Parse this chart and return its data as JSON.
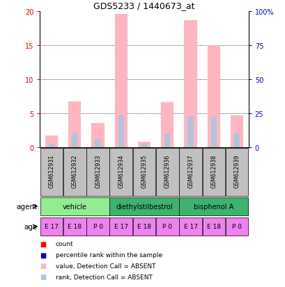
{
  "title": "GDS5233 / 1440673_at",
  "samples": [
    "GSM612931",
    "GSM612932",
    "GSM612933",
    "GSM612934",
    "GSM612935",
    "GSM612936",
    "GSM612937",
    "GSM612938",
    "GSM612939"
  ],
  "absent_value": [
    1.7,
    6.7,
    3.6,
    19.5,
    0.85,
    6.6,
    18.6,
    15.0,
    4.7
  ],
  "absent_rank": [
    2.5,
    11.0,
    6.0,
    23.5,
    2.5,
    10.5,
    23.0,
    22.5,
    10.5
  ],
  "ylim_left": [
    0,
    20
  ],
  "ylim_right": [
    0,
    100
  ],
  "yticks_left": [
    0,
    5,
    10,
    15,
    20
  ],
  "yticks_right": [
    0,
    25,
    50,
    75,
    100
  ],
  "ytick_labels_left": [
    "0",
    "5",
    "10",
    "15",
    "20"
  ],
  "ytick_labels_right": [
    "0",
    "25",
    "50",
    "75",
    "100%"
  ],
  "agent_colors": [
    "#90EE90",
    "#3CB371",
    "#3CB371"
  ],
  "agent_labels": [
    "vehicle",
    "diethylstilbestrol",
    "bisphenol A"
  ],
  "agent_starts": [
    0,
    3,
    6
  ],
  "agent_ends": [
    3,
    6,
    9
  ],
  "age_labels": [
    "E 17",
    "E 18",
    "P 0",
    "E 17",
    "E 18",
    "P 0",
    "E 17",
    "E 18",
    "P 0"
  ],
  "age_color": "#EE82EE",
  "sample_bg_color": "#C0C0C0",
  "bar_width": 0.55,
  "rank_bar_width": 0.25,
  "absent_value_color": "#FFB6C1",
  "absent_rank_color": "#B0C4DE",
  "legend_items": [
    {
      "color": "#FF0000",
      "label": "count"
    },
    {
      "color": "#0000CD",
      "label": "percentile rank within the sample"
    },
    {
      "color": "#FFB6C1",
      "label": "value, Detection Call = ABSENT"
    },
    {
      "color": "#B0C4DE",
      "label": "rank, Detection Call = ABSENT"
    }
  ]
}
